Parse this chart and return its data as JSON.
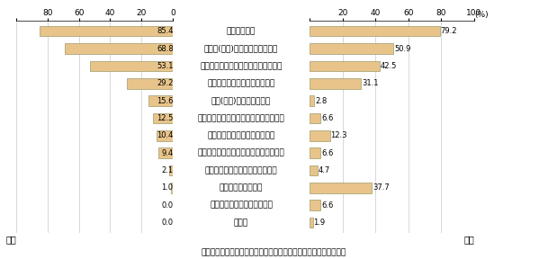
{
  "categories": [
    "人件費が安い",
    "日本語(英語)を使える人材が多い",
    "ソフトの高い技術力を持つ人材が多い",
    "開発アウトプットの品質が高い",
    "日本(米国)と地理的に近い",
    "情報セキュリティ等に対する意識が高い",
    "制度的・政治的に安定している",
    "インフラが整備されており信頼性も高い",
    "知的財産権等に対する意識が高い",
    "インフラ費用が安い",
    "税制・金融上の優遇策がある",
    "その他"
  ],
  "japan_values": [
    85.4,
    68.8,
    53.1,
    29.2,
    15.6,
    12.5,
    10.4,
    9.4,
    2.1,
    1.0,
    0.0,
    0.0
  ],
  "us_values": [
    79.2,
    50.9,
    42.5,
    31.1,
    2.8,
    6.6,
    12.3,
    6.6,
    4.7,
    37.7,
    6.6,
    1.9
  ],
  "bar_color": "#E8C48A",
  "bar_edge_color": "#888855",
  "background_color": "#FFFFFF",
  "japan_label": "日本",
  "us_label": "米国",
  "footer_text": "（出典）「オフショアリングの進展とその影響に関する調査研究」",
  "grid_color": "#BBBBBB",
  "tick_fontsize": 6.5,
  "label_fontsize": 6.5,
  "footer_fontsize": 6.5,
  "value_fontsize": 6.0
}
